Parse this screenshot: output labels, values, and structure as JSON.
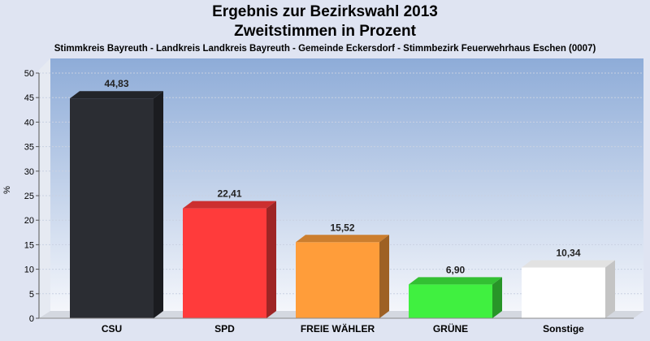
{
  "header": {
    "title": "Ergebnis zur Bezirkswahl 2013",
    "title2": "Zweitstimmen in Prozent",
    "subtitle": "Stimmkreis Bayreuth - Landkreis Landkreis Bayreuth - Gemeinde Eckersdorf - Stimmbezirk Feuerwehrhaus Eschen (0007)"
  },
  "chart_data": {
    "type": "bar",
    "title": "Ergebnis zur Bezirkswahl 2013",
    "subtitle": "Zweitstimmen in Prozent",
    "ylabel": "%",
    "xlabel": "",
    "ylim": [
      0,
      50
    ],
    "yticks": [
      0,
      5,
      10,
      15,
      20,
      25,
      30,
      35,
      40,
      45,
      50
    ],
    "grid": true,
    "legend": "none",
    "categories": [
      "CSU",
      "SPD",
      "FREIE WÄHLER",
      "GRÜNE",
      "Sonstige"
    ],
    "values": [
      44.83,
      22.41,
      15.52,
      6.9,
      10.34
    ],
    "value_labels": [
      "44,83",
      "22,41",
      "15,52",
      "6,90",
      "10,34"
    ],
    "colors": [
      "#2b2d33",
      "#ff3b3b",
      "#ff9d3a",
      "#40f040",
      "#ffffff"
    ]
  }
}
